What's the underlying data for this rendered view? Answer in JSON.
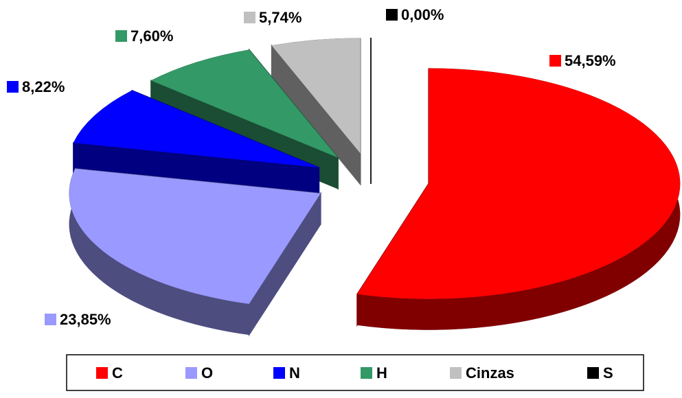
{
  "chart_data": {
    "type": "pie",
    "categories": [
      "C",
      "O",
      "N",
      "H",
      "Cinzas",
      "S"
    ],
    "values": [
      54.59,
      23.85,
      8.22,
      7.6,
      5.74,
      0.0
    ],
    "value_labels": [
      "54,59%",
      "23,85%",
      "8,22%",
      "7,60%",
      "5,74%",
      "0,00%"
    ],
    "colors": [
      "#ff0000",
      "#9999ff",
      "#0000ff",
      "#339966",
      "#c0c0c0",
      "#000000"
    ],
    "legend": "bottom"
  }
}
